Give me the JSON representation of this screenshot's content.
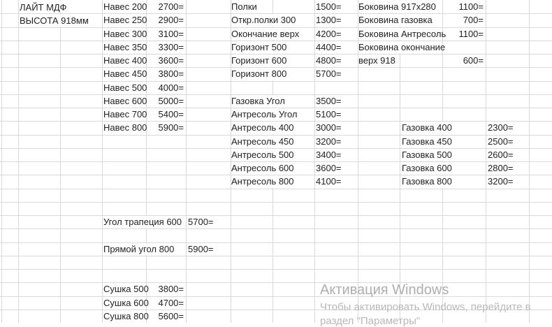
{
  "header": {
    "title": "ЛАЙТ МДФ",
    "subtitle": "ВЫСОТА 918мм"
  },
  "price_blocks": {
    "naves": [
      {
        "label": "Навес 200",
        "price": "2700="
      },
      {
        "label": "Навес 250",
        "price": "2900="
      },
      {
        "label": "Навес 300",
        "price": "3100="
      },
      {
        "label": "Навес 350",
        "price": "3300="
      },
      {
        "label": "Навес 400",
        "price": "3600="
      },
      {
        "label": "Навес 450",
        "price": "3800="
      },
      {
        "label": "Навес 500",
        "price": "4000="
      },
      {
        "label": "Навес 600",
        "price": "5000="
      },
      {
        "label": "Навес 700",
        "price": "5400="
      },
      {
        "label": "Навес 800",
        "price": "5900="
      }
    ],
    "shelves": [
      {
        "label": "Полки",
        "price": "1500="
      },
      {
        "label": "Откр.полки 300",
        "price": "1300="
      },
      {
        "label": "Окончание верх",
        "price": "4200="
      },
      {
        "label": "Горизонт 500",
        "price": "4400="
      },
      {
        "label": "Горизонт 600",
        "price": "4800="
      },
      {
        "label": "Горизонт 800",
        "price": "5700="
      }
    ],
    "antresol": [
      {
        "label": "Газовка Угол",
        "price": "3500="
      },
      {
        "label": "Антресоль Угол",
        "price": "5100="
      },
      {
        "label": "Антресоль 400",
        "price": "3000="
      },
      {
        "label": "Антресоль 450",
        "price": "3200="
      },
      {
        "label": "Антресоль 500",
        "price": "3400="
      },
      {
        "label": "Антресоль 600",
        "price": "3600="
      },
      {
        "label": "Антресоль 800",
        "price": "4100="
      }
    ],
    "bokovina": [
      {
        "label": "Боковина 917х280",
        "price": "1100="
      },
      {
        "label": "Боковина газовка",
        "price": "700="
      },
      {
        "label": "Боковина Антресоль",
        "price": "1100="
      },
      {
        "label": "Боковина окончание",
        "price": ""
      },
      {
        "label": "верх 918",
        "price": "600="
      }
    ],
    "gazovka": [
      {
        "label": "Газовка 400",
        "price": "2300="
      },
      {
        "label": "Газовка 450",
        "price": "2500="
      },
      {
        "label": "Газовка 500",
        "price": "2600="
      },
      {
        "label": "Газовка 600",
        "price": "2800="
      },
      {
        "label": "Газовка 800",
        "price": "3200="
      }
    ],
    "corner_trapezoid": {
      "label": "Угол трапеция 600",
      "price": "5700="
    },
    "corner_straight": {
      "label": "Прямой угол 800",
      "price": "5900="
    },
    "sushka": [
      {
        "label": "Сушка 500",
        "price": "3800="
      },
      {
        "label": "Сушка 600",
        "price": "4700="
      },
      {
        "label": "Сушка 800",
        "price": "5600="
      }
    ]
  },
  "watermark": {
    "title": "Активация Windows",
    "line1": "Чтобы активировать Windows, перейдите в",
    "line2": "раздел \"Параметры\""
  },
  "colors": {
    "gridline": "#d9d9d9",
    "text": "#222222",
    "watermark": "#b0b0b0"
  }
}
